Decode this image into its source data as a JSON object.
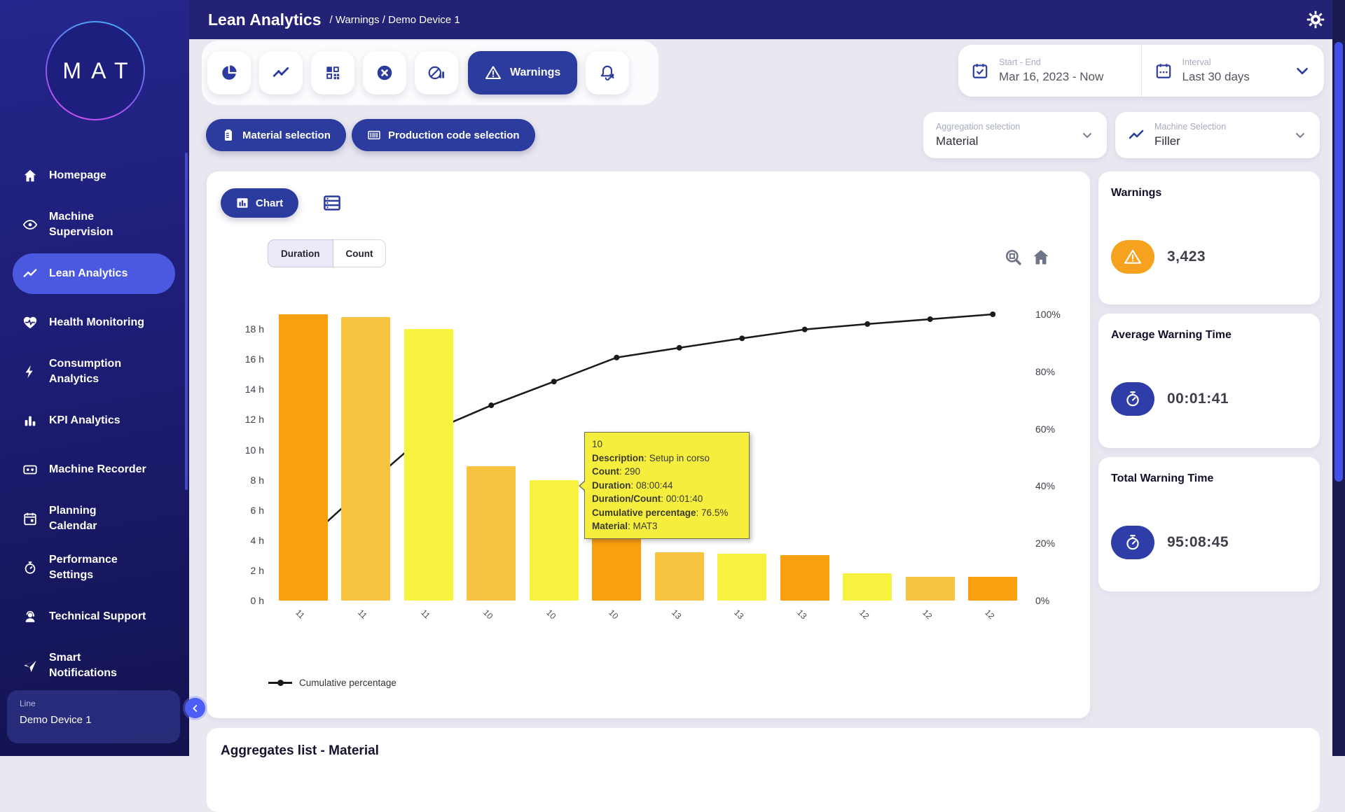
{
  "header": {
    "title": "Lean Analytics",
    "crumbs": [
      "Warnings",
      "Demo Device 1"
    ]
  },
  "logo": "MAT",
  "sidebar": {
    "items": [
      {
        "label": "Homepage"
      },
      {
        "label": "Machine\nSupervision"
      },
      {
        "label": "Lean Analytics",
        "active": true
      },
      {
        "label": "Health Monitoring"
      },
      {
        "label": "Consumption\nAnalytics"
      },
      {
        "label": "KPI Analytics"
      },
      {
        "label": "Machine Recorder"
      },
      {
        "label": "Planning\nCalendar"
      },
      {
        "label": "Performance\nSettings"
      },
      {
        "label": "Technical Support"
      },
      {
        "label": "Smart\nNotifications"
      }
    ],
    "footer": {
      "label": "Line",
      "device": "Demo Device 1"
    }
  },
  "toolbar": {
    "warnings_label": "Warnings"
  },
  "filters": {
    "start_end": {
      "label": "Start - End",
      "value": "Mar 16, 2023 - Now"
    },
    "interval": {
      "label": "Interval",
      "value": "Last 30 days"
    },
    "material_button": "Material selection",
    "production_button": "Production code selection",
    "aggregation": {
      "label": "Aggregation selection",
      "value": "Material"
    },
    "machine": {
      "label": "Machine Selection",
      "value": "Filler"
    }
  },
  "chart_card": {
    "chart_tab": "Chart",
    "toggles": {
      "duration": "Duration",
      "count": "Count",
      "active": "Duration"
    }
  },
  "chart_data": {
    "type": "pareto (bar + cumulative line)",
    "categories": [
      "11",
      "11",
      "11",
      "10",
      "10",
      "10",
      "13",
      "13",
      "13",
      "12",
      "12",
      "12"
    ],
    "series": [
      {
        "name": "Duration",
        "type": "bar",
        "unit": "hours",
        "values": [
          19.0,
          18.8,
          18.0,
          8.9,
          8.0,
          7.9,
          3.2,
          3.1,
          3.0,
          1.8,
          1.6,
          1.6
        ]
      },
      {
        "name": "Cumulative percentage",
        "type": "line",
        "unit": "%",
        "values": [
          20.0,
          39.8,
          58.8,
          68.2,
          76.5,
          84.9,
          88.3,
          91.6,
          94.7,
          96.6,
          98.3,
          100
        ]
      }
    ],
    "bar_colors": [
      "#FA9F0E",
      "#F9C342",
      "#F7F23F",
      "#F9C342",
      "#F7F23F",
      "#FA9F0E",
      "#F9C342",
      "#F7F23F",
      "#FA9F0E",
      "#F7F23F",
      "#F9C342",
      "#FA9F0E"
    ],
    "y_left": {
      "unit": "h",
      "tick_values": [
        18,
        16,
        14,
        12,
        10,
        8,
        6,
        4,
        2,
        0
      ],
      "tick_labels": [
        "18 h",
        "16 h",
        "14 h",
        "12 h",
        "10 h",
        "8 h",
        "6 h",
        "4 h",
        "2 h",
        "0 h"
      ]
    },
    "y_right": {
      "unit": "%",
      "tick_values": [
        100,
        80,
        60,
        40,
        20,
        0
      ],
      "tick_labels": [
        "100%",
        "80%",
        "60%",
        "40%",
        "20%",
        "0%"
      ]
    },
    "legend": [
      "Cumulative percentage"
    ],
    "grid": false,
    "tooltip": {
      "target_bar_index": 4,
      "lines": [
        {
          "label": "",
          "value": "10"
        },
        {
          "label": "Description",
          "value": "Setup in corso"
        },
        {
          "label": "Count",
          "value": "290"
        },
        {
          "label": "Duration",
          "value": "08:00:44"
        },
        {
          "label": "Duration/Count",
          "value": "00:01:40"
        },
        {
          "label": "Cumulative percentage",
          "value": "76.5%"
        },
        {
          "label": "Material",
          "value": "MAT3"
        }
      ]
    }
  },
  "kpi_cards": [
    {
      "title": "Warnings",
      "value": "3,423",
      "icon": "warning-triangle",
      "pill_color": "#F6A21E"
    },
    {
      "title": "Average Warning Time",
      "value": "00:01:41",
      "icon": "stopwatch",
      "pill_color": "#2F3DA8"
    },
    {
      "title": "Total Warning Time",
      "value": "95:08:45",
      "icon": "stopwatch",
      "pill_color": "#2F3DA8"
    }
  ],
  "bottom": {
    "title": "Aggregates list - Material"
  },
  "colors": {
    "accent_blue": "#2C3C9E",
    "active_nav": "#4A59E0",
    "header": "#232274",
    "bar_orange": "#FA9F0E",
    "bar_amber": "#F9C342",
    "bar_yellow": "#F7F23F",
    "pill_orange": "#F6A21E",
    "pill_blue": "#2F3DA8",
    "tooltip_bg": "#F6EE3C",
    "line_color": "#1A1A1A",
    "page_bg": "#E9E8F1"
  }
}
